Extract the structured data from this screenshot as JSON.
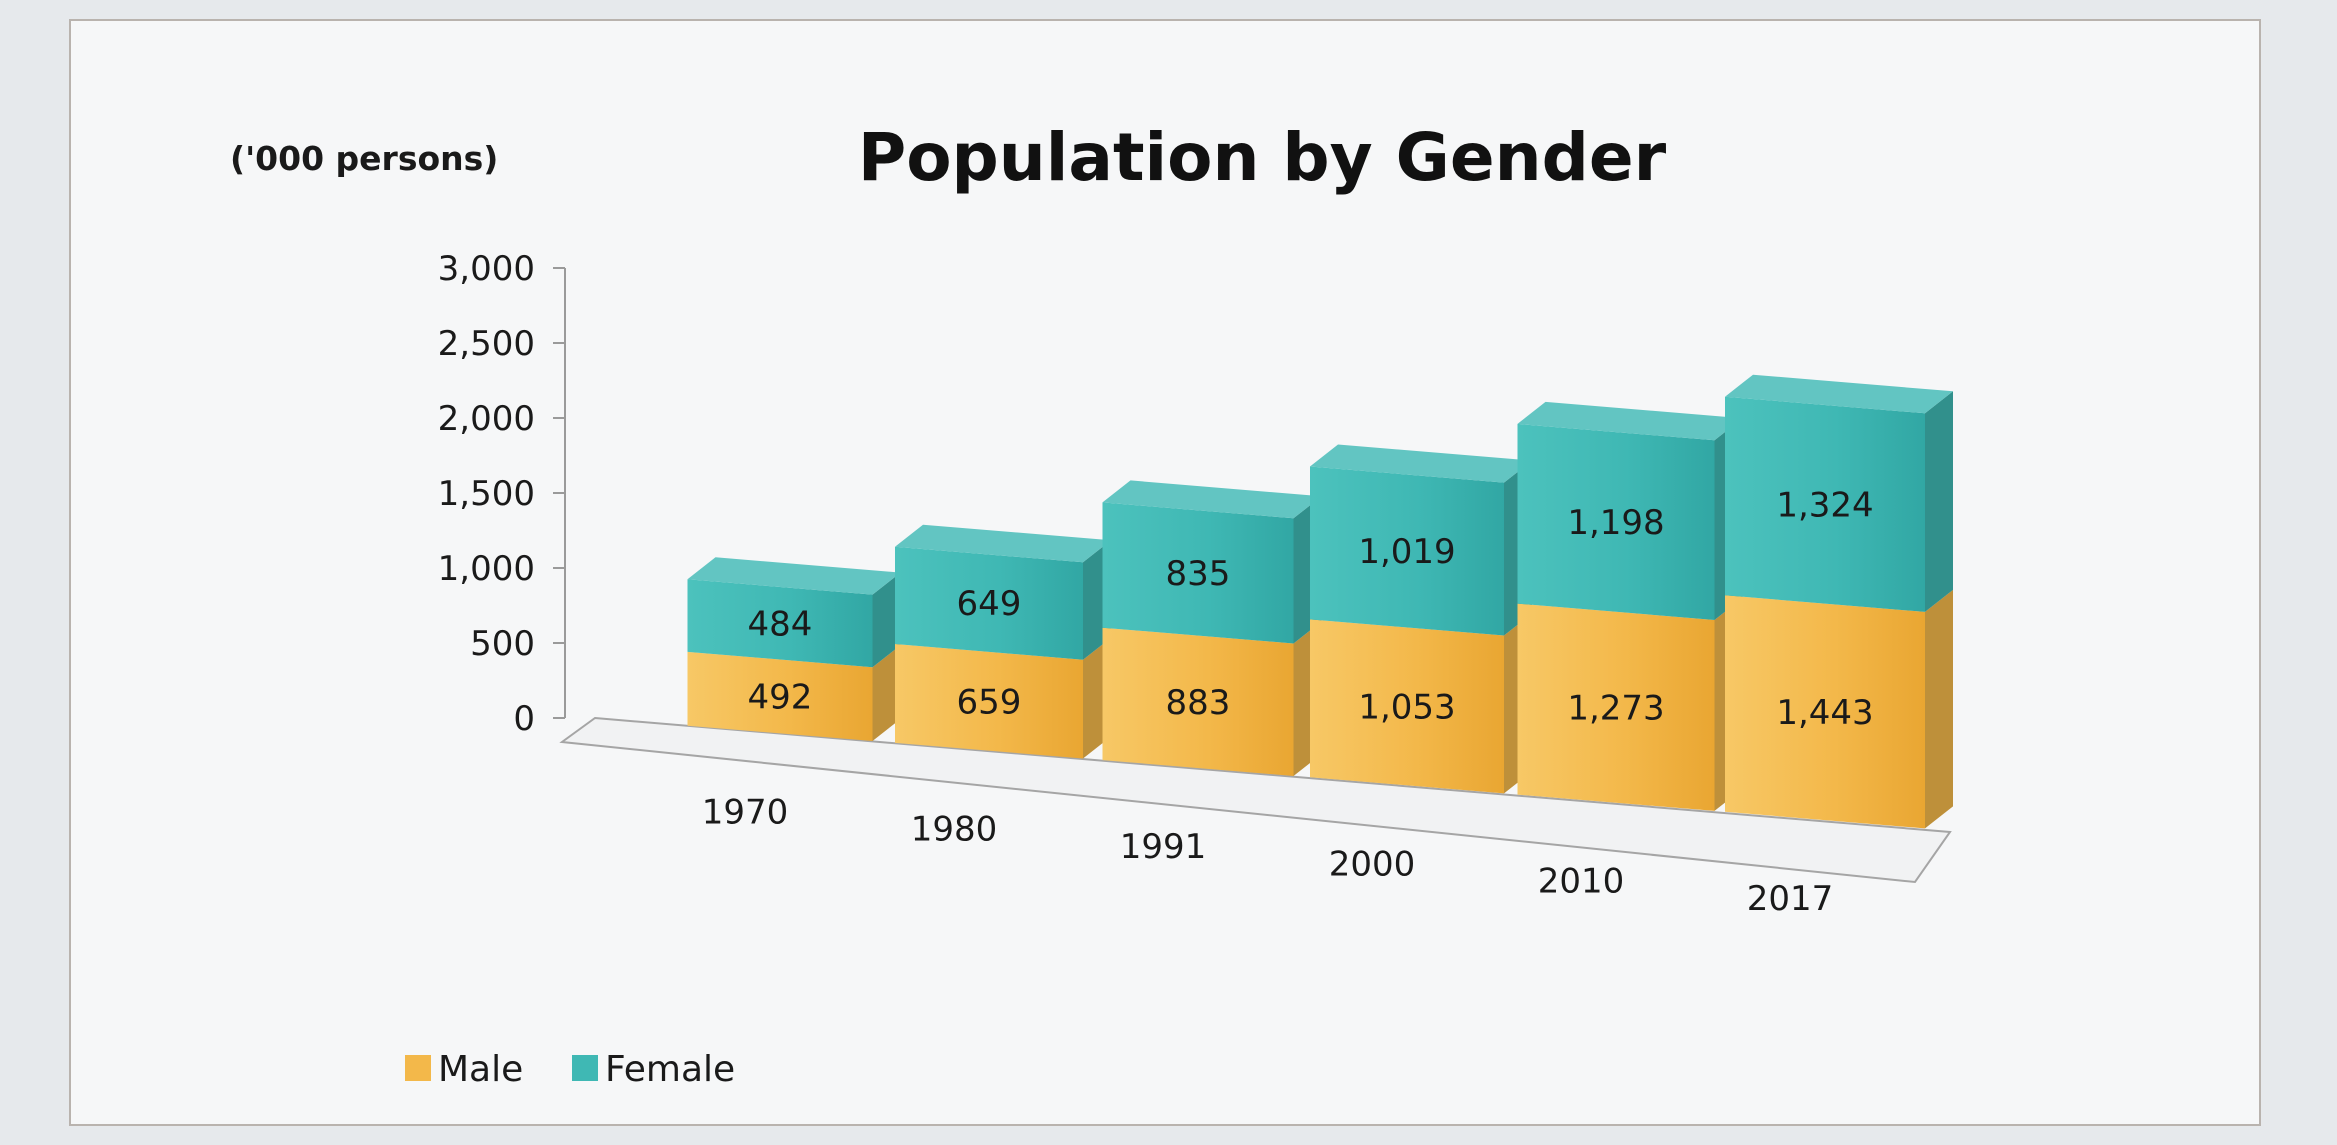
{
  "chart_data": {
    "type": "bar",
    "stacked": true,
    "three_d": true,
    "title": "Population by Gender",
    "unit_label": "('000 persons)",
    "categories": [
      "1970",
      "1980",
      "1991",
      "2000",
      "2010",
      "2017"
    ],
    "series": [
      {
        "name": "Male",
        "values": [
          492,
          659,
          883,
          1053,
          1273,
          1443
        ],
        "color": "#f3b84a"
      },
      {
        "name": "Female",
        "values": [
          484,
          649,
          835,
          1019,
          1198,
          1324
        ],
        "color": "#3fb8b4"
      }
    ],
    "value_labels": {
      "Male": [
        "492",
        "659",
        "883",
        "1,053",
        "1,273",
        "1,443"
      ],
      "Female": [
        "484",
        "649",
        "835",
        "1,019",
        "1,198",
        "1,324"
      ]
    },
    "y_ticks": [
      "0",
      "500",
      "1,000",
      "1,500",
      "2,000",
      "2,500",
      "3,000"
    ],
    "ylim": [
      0,
      3000
    ],
    "legend_position": "bottom-left",
    "grid": false
  }
}
